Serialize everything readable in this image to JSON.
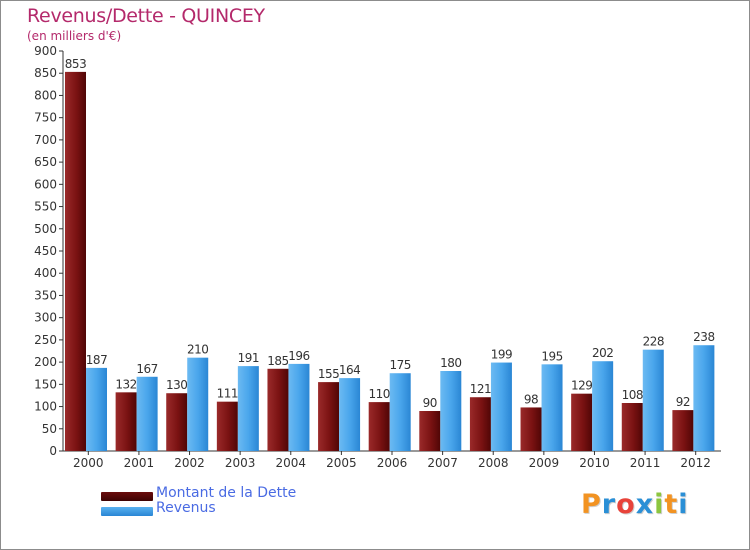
{
  "title": "Revenus/Dette - QUINCEY",
  "subtitle": "(en milliers d'€)",
  "logo": {
    "letters": [
      "P",
      "r",
      "o",
      "x",
      "i",
      "t",
      "i"
    ],
    "colors": [
      "#f29322",
      "#2a8fd6",
      "#e8433a",
      "#2a8fd6",
      "#8cc63f",
      "#f29322",
      "#2a8fd6"
    ]
  },
  "colors": {
    "dette": "#8b1a1a",
    "dette_dark": "#5a0a0a",
    "revenus": "#4aa6ec",
    "revenus_dark": "#1d78c4",
    "title": "#b4296b",
    "legend_text": "#4a6be3"
  },
  "legend": {
    "dette_label": "Montant de la Dette",
    "revenus_label": "Revenus"
  },
  "chart_data": {
    "type": "bar",
    "title": "Revenus/Dette - QUINCEY",
    "ylabel": "(en milliers d'€)",
    "xlabel": "",
    "ylim": [
      0,
      900
    ],
    "yticks": [
      0,
      50,
      100,
      150,
      200,
      250,
      300,
      350,
      400,
      450,
      500,
      550,
      600,
      650,
      700,
      750,
      800,
      850,
      900
    ],
    "grid": false,
    "legend_position": "bottom-left",
    "categories": [
      "2000",
      "2001",
      "2002",
      "2003",
      "2004",
      "2005",
      "2006",
      "2007",
      "2008",
      "2009",
      "2010",
      "2011",
      "2012"
    ],
    "series": [
      {
        "name": "Montant de la Dette",
        "values": [
          853,
          132,
          130,
          111,
          185,
          155,
          110,
          90,
          121,
          98,
          129,
          108,
          92
        ]
      },
      {
        "name": "Revenus",
        "values": [
          187,
          167,
          210,
          191,
          196,
          164,
          175,
          180,
          199,
          195,
          202,
          228,
          238
        ]
      }
    ]
  }
}
